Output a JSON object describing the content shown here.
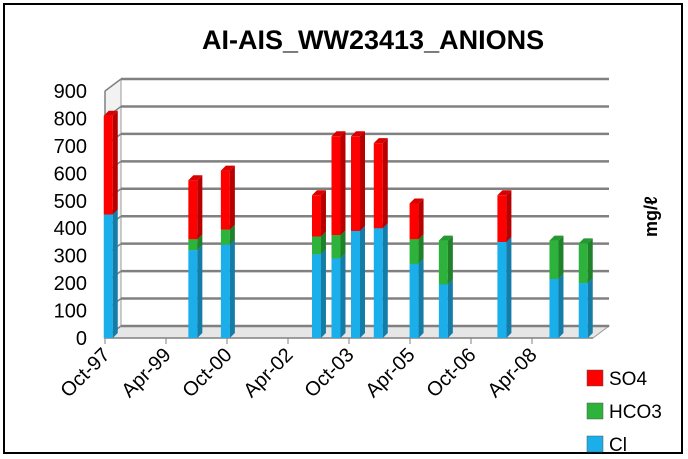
{
  "chart_data": {
    "type": "bar",
    "stacked": true,
    "title": "AI-AIS_WW23413_ANIONS",
    "xlabel": "",
    "ylabel": "mg/ℓ",
    "ylim": [
      0,
      900
    ],
    "yticks": [
      "0",
      "100",
      "200",
      "300",
      "400",
      "500",
      "600",
      "700",
      "800",
      "900"
    ],
    "xlim": [
      "1997-10",
      "2010-04"
    ],
    "xticks": [
      "Oct-97",
      "Apr-99",
      "Oct-00",
      "Apr-02",
      "Oct-03",
      "Apr-05",
      "Oct-06",
      "Apr-08"
    ],
    "grid": true,
    "legend_position": "bottom-right",
    "x": [
      "1997-11",
      "2000-01",
      "2000-11",
      "2003-03",
      "2003-09",
      "2004-03",
      "2004-10",
      "2005-09",
      "2006-06",
      "2007-12",
      "2009-04",
      "2010-01"
    ],
    "series": [
      {
        "name": "Cl",
        "color": "#1aaeea",
        "values": [
          450,
          320,
          340,
          305,
          290,
          390,
          400,
          270,
          195,
          350,
          215,
          200
        ]
      },
      {
        "name": "HCO3",
        "color": "#2db33c",
        "values": [
          0,
          40,
          55,
          65,
          85,
          0,
          0,
          90,
          160,
          0,
          140,
          145
        ]
      },
      {
        "name": "SO4",
        "color": "#ff0000",
        "values": [
          360,
          215,
          215,
          150,
          360,
          345,
          310,
          130,
          0,
          170,
          0,
          0
        ]
      }
    ],
    "legend": [
      {
        "label": "SO4",
        "color": "#ff0000"
      },
      {
        "label": "HCO3",
        "color": "#2db33c"
      },
      {
        "label": "Cl",
        "color": "#1aaeea"
      }
    ]
  }
}
